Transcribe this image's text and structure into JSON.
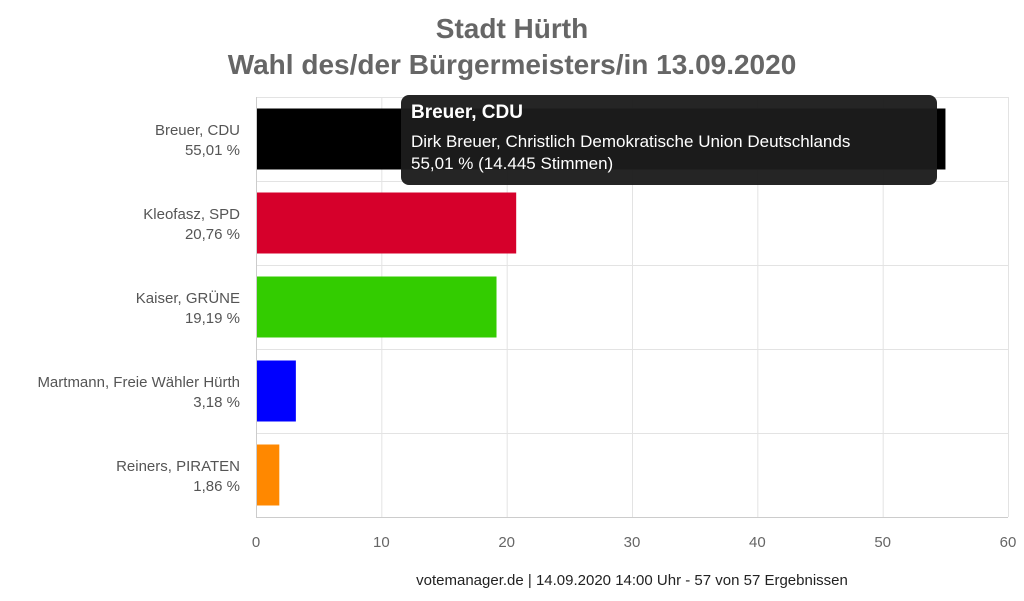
{
  "chart_data": {
    "type": "bar",
    "orientation": "horizontal",
    "title": "Stadt Hürth",
    "subtitle": "Wahl des/der Bürgermeisters/in 13.09.2020",
    "categories": [
      "Breuer, CDU",
      "Kleofasz, SPD",
      "Kaiser, GRÜNE",
      "Martmann, Freie Wähler Hürth",
      "Reiners, PIRATEN"
    ],
    "values": [
      55.01,
      20.76,
      19.19,
      3.18,
      1.86
    ],
    "value_labels": [
      "55,01 %",
      "20,76 %",
      "19,19 %",
      "3,18 %",
      "1,86 %"
    ],
    "colors": [
      "#000000",
      "#d6002b",
      "#33cc00",
      "#0000ff",
      "#ff8800"
    ],
    "xlim": [
      0,
      60
    ],
    "xticks": [
      0,
      10,
      20,
      30,
      40,
      50,
      60
    ],
    "xtick_labels": [
      "0",
      "10",
      "20",
      "30",
      "40",
      "50",
      "60"
    ],
    "grid": true,
    "xlabel": "",
    "ylabel": "",
    "tooltip": {
      "title": "Breuer, CDU",
      "line1": "Dirk Breuer, Christlich Demokratische Union Deutschlands",
      "line2": "55,01 % (14.445 Stimmen)"
    },
    "footer": "votemanager.de | 14.09.2020 14:00 Uhr - 57 von 57 Ergebnissen"
  }
}
